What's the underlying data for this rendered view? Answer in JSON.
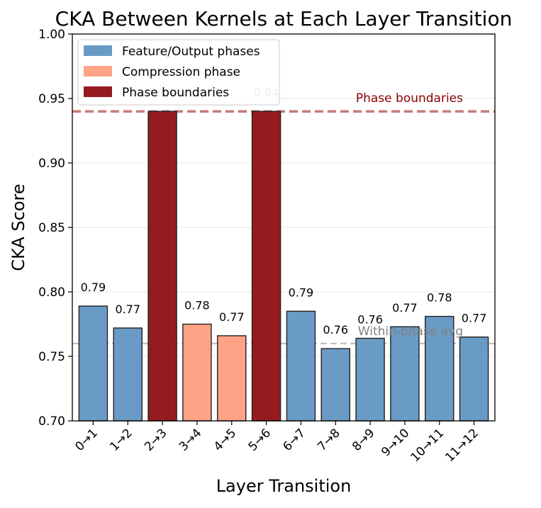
{
  "chart_data": {
    "type": "bar",
    "title": "CKA Between Kernels at Each Layer Transition",
    "xlabel": "Layer Transition",
    "ylabel": "CKA Score",
    "ylim": [
      0.7,
      1.0
    ],
    "yticks": [
      "0.70",
      "0.75",
      "0.80",
      "0.85",
      "0.90",
      "0.95",
      "1.00"
    ],
    "ytick_values": [
      0.7,
      0.75,
      0.8,
      0.85,
      0.9,
      0.95,
      1.0
    ],
    "grid": "horizontal",
    "categories": [
      "0→1",
      "1→2",
      "2→3",
      "3→4",
      "4→5",
      "5→6",
      "6→7",
      "7→8",
      "8→9",
      "9→10",
      "10→11",
      "11→12"
    ],
    "values": [
      0.789,
      0.772,
      0.94,
      0.775,
      0.766,
      0.94,
      0.785,
      0.756,
      0.764,
      0.773,
      0.781,
      0.765
    ],
    "value_labels": [
      "0.79",
      "0.77",
      "0.94",
      "0.78",
      "0.77",
      "0.94",
      "0.79",
      "0.76",
      "0.76",
      "0.77",
      "0.78",
      "0.77"
    ],
    "phase": [
      "feature",
      "feature",
      "boundary",
      "compression",
      "compression",
      "boundary",
      "feature",
      "feature",
      "feature",
      "feature",
      "feature",
      "feature"
    ],
    "colors": {
      "feature": "#6a9bc6",
      "compression": "#fea386",
      "boundary": "#961b1e",
      "boundary_line": "#c77a7a",
      "avg_line": "#bdbdbd",
      "boundary_text": "#8b0000",
      "avg_text": "#808080"
    },
    "legend": {
      "position": "top-left",
      "entries": [
        {
          "label": "Feature/Output phases",
          "phase": "feature"
        },
        {
          "label": "Compression phase",
          "phase": "compression"
        },
        {
          "label": "Phase boundaries",
          "phase": "boundary"
        }
      ]
    },
    "reference_lines": [
      {
        "value": 0.94,
        "label": "Phase boundaries",
        "kind": "boundary"
      },
      {
        "value": 0.76,
        "label": "Within-phase avg",
        "kind": "avg"
      }
    ]
  }
}
